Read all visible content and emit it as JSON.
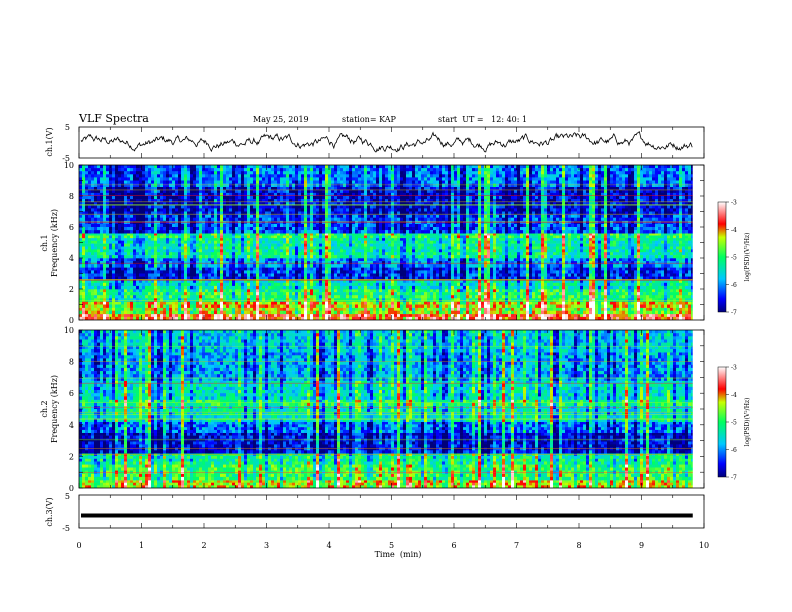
{
  "header": {
    "title": "VLF Spectra",
    "date": "May 25, 2019",
    "station": "station= KAP",
    "start_time": "start  UT =   12: 40: 1"
  },
  "chart_data": [
    {
      "type": "line",
      "panel": "ch1-waveform",
      "ylabel": "ch.1(V)",
      "ylim": [
        -5,
        5
      ],
      "yticks": [
        "5",
        "-5"
      ],
      "xlim": [
        0,
        10
      ],
      "x_extent": [
        0,
        9.82
      ],
      "description_level": "noisy signal fluctuating roughly between -2 and 3 V"
    },
    {
      "type": "heatmap",
      "panel": "ch1-spectrogram",
      "ylabel": "ch.1\nFrequency (kHz)",
      "ylim": [
        0,
        10
      ],
      "yticks": [
        "0",
        "2",
        "4",
        "6",
        "8",
        "10"
      ],
      "xlim": [
        0,
        10
      ],
      "x_extent": [
        0,
        9.82
      ],
      "colorbar": {
        "label": "log(PSD)(V²/Hz)",
        "range": [
          -7,
          -3
        ],
        "ticks": [
          "-3",
          "-4",
          "-5",
          "-6",
          "-7"
        ]
      },
      "bands": [
        {
          "f": [
            0,
            0.4
          ],
          "v": -3.6
        },
        {
          "f": [
            0.4,
            0.8
          ],
          "v": -4.4
        },
        {
          "f": [
            0.8,
            1.2
          ],
          "v": -4.2
        },
        {
          "f": [
            1.2,
            2.0
          ],
          "v": -5.0
        },
        {
          "f": [
            2.0,
            2.6
          ],
          "v": -5.4
        },
        {
          "f": [
            2.6,
            3.4
          ],
          "v": -6.4
        },
        {
          "f": [
            3.4,
            4.0
          ],
          "v": -6.0
        },
        {
          "f": [
            4.0,
            5.3
          ],
          "v": -5.3
        },
        {
          "f": [
            5.3,
            5.6
          ],
          "v": -4.9
        },
        {
          "f": [
            5.6,
            6.8
          ],
          "v": -6.3
        },
        {
          "f": [
            6.8,
            8.6
          ],
          "v": -6.6
        },
        {
          "f": [
            8.6,
            10.0
          ],
          "v": -6.1
        }
      ]
    },
    {
      "type": "heatmap",
      "panel": "ch2-spectrogram",
      "ylabel": "ch.2\nFrequency (kHz)",
      "ylim": [
        0,
        10
      ],
      "yticks": [
        "0",
        "2",
        "4",
        "6",
        "8",
        "10"
      ],
      "xlim": [
        0,
        10
      ],
      "x_extent": [
        0,
        9.82
      ],
      "colorbar": {
        "label": "log(PSD)(V²/Hz)",
        "range": [
          -7,
          -3
        ],
        "ticks": [
          "-3",
          "-4",
          "-5",
          "-6",
          "-7"
        ]
      },
      "bands": [
        {
          "f": [
            0,
            0.5
          ],
          "v": -4.3
        },
        {
          "f": [
            0.5,
            1.5
          ],
          "v": -4.9
        },
        {
          "f": [
            1.5,
            2.2
          ],
          "v": -5.2
        },
        {
          "f": [
            2.2,
            3.5
          ],
          "v": -6.6
        },
        {
          "f": [
            3.5,
            4.2
          ],
          "v": -6.1
        },
        {
          "f": [
            4.2,
            5.2
          ],
          "v": -5.4
        },
        {
          "f": [
            5.2,
            5.6
          ],
          "v": -5.0
        },
        {
          "f": [
            5.6,
            6.8
          ],
          "v": -5.5
        },
        {
          "f": [
            6.8,
            8.6
          ],
          "v": -5.9
        },
        {
          "f": [
            8.6,
            10.0
          ],
          "v": -5.7
        }
      ]
    },
    {
      "type": "line",
      "panel": "ch3-waveform",
      "ylabel": "ch.3(V)",
      "ylim": [
        -5,
        5
      ],
      "yticks": [
        "5",
        "-5"
      ],
      "xlim": [
        0,
        10
      ],
      "x_extent": [
        0,
        9.82
      ],
      "constant_value": -1.2,
      "xlabel": "Time  (min)",
      "xticks": [
        "0",
        "1",
        "2",
        "3",
        "4",
        "5",
        "6",
        "7",
        "8",
        "9",
        "10"
      ]
    }
  ],
  "colors": {
    "axis": "#000000",
    "trace": "#000000",
    "background": "#ffffff"
  }
}
